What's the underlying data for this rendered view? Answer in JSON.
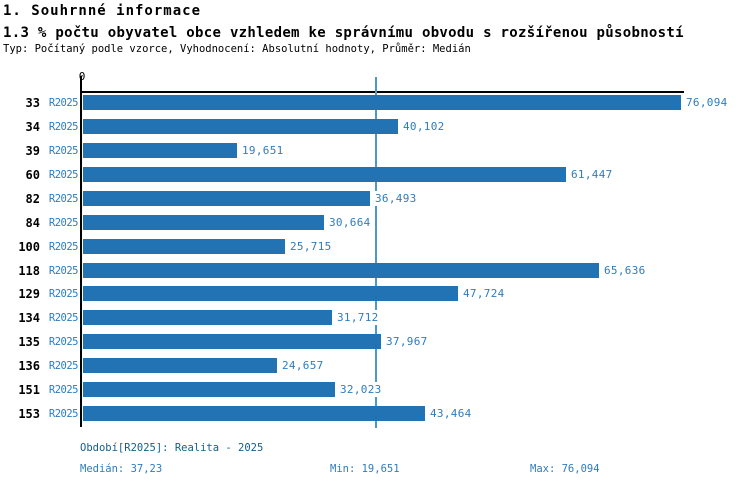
{
  "header": {
    "title": "1. Souhrnné informace",
    "subtitle": "1.3 % počtu obyvatel obce vzhledem ke správnímu obvodu s rozšířenou působností",
    "meta": "Typ: Počítaný podle vzorce, Vyhodnocení: Absolutní hodnoty, Průměr: Medián"
  },
  "chart_data": {
    "type": "bar",
    "orientation": "horizontal",
    "categories": [
      "33",
      "34",
      "39",
      "60",
      "82",
      "84",
      "100",
      "118",
      "129",
      "134",
      "135",
      "136",
      "151",
      "153"
    ],
    "series_label": "R2025",
    "values": [
      76.094,
      40.102,
      19.651,
      61.447,
      36.493,
      30.664,
      25.715,
      65.636,
      47.724,
      31.712,
      37.967,
      24.657,
      32.023,
      43.464
    ],
    "value_labels": [
      "76,094",
      "40,102",
      "19,651",
      "61,447",
      "36,493",
      "30,664",
      "25,715",
      "65,636",
      "47,724",
      "31,712",
      "37,967",
      "24,657",
      "32,023",
      "43,464"
    ],
    "xlim": [
      0,
      76.094
    ],
    "x_tick_labels": [
      "0"
    ],
    "axis_zero_label": "0",
    "median_line_value": 37.23,
    "legend_position": "none",
    "grid": "median-line-only"
  },
  "footer": {
    "period": "Období[R2025]: Realita - 2025",
    "median": "Medián: 37,23",
    "min": "Min: 19,651",
    "max": "Max: 76,094"
  },
  "colors": {
    "bar": "#2273B4",
    "blue_text": "#2E7CBE",
    "footer_dark": "#135E8C",
    "median_line": "#4E97C9",
    "axis": "#000000"
  }
}
